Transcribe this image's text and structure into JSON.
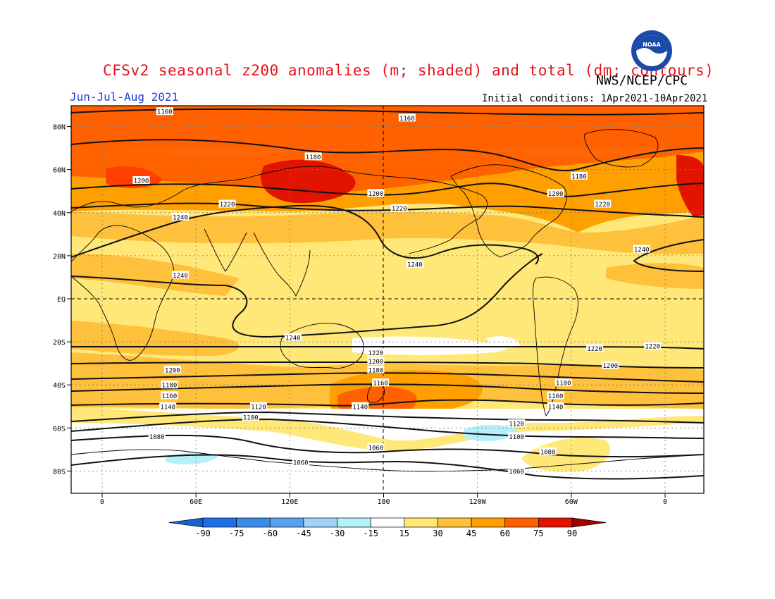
{
  "title": "CFSv2 seasonal z200 anomalies (m; shaded) and total (dm; contours)",
  "agency": "NWS/NCEP/CPC",
  "period": "Jun-Jul-Aug 2021",
  "initial_conditions": "Initial conditions: 1Apr2021-10Apr2021",
  "logo_text": "NOAA",
  "lat_labels": [
    "80N",
    "60N",
    "40N",
    "20N",
    "EQ",
    "20S",
    "40S",
    "60S",
    "80S"
  ],
  "lon_labels": [
    "0",
    "60E",
    "120E",
    "180",
    "120W",
    "60W",
    "0"
  ],
  "colorbar": {
    "ticks": [
      "-90",
      "-75",
      "-60",
      "-45",
      "-30",
      "-15",
      "15",
      "30",
      "45",
      "60",
      "75",
      "90"
    ],
    "colors": [
      "#1464d2",
      "#1e6ee6",
      "#3c8ce6",
      "#5aa0f0",
      "#a0d2fa",
      "#b4f0fa",
      "#ffffff",
      "#ffe878",
      "#ffc03c",
      "#ffa000",
      "#ff6000",
      "#e11400",
      "#a50000"
    ]
  },
  "contour_labels": [
    {
      "text": "1160",
      "lon": 40,
      "lat": 87
    },
    {
      "text": "1160",
      "lon": 195,
      "lat": 84
    },
    {
      "text": "1180",
      "lon": 135,
      "lat": 66
    },
    {
      "text": "1180",
      "lon": 305,
      "lat": 57
    },
    {
      "text": "1200",
      "lon": 25,
      "lat": 55
    },
    {
      "text": "1200",
      "lon": 175,
      "lat": 49
    },
    {
      "text": "1200",
      "lon": 290,
      "lat": 49
    },
    {
      "text": "1220",
      "lon": 80,
      "lat": 44
    },
    {
      "text": "1220",
      "lon": 190,
      "lat": 42
    },
    {
      "text": "1220",
      "lon": 320,
      "lat": 44
    },
    {
      "text": "1240",
      "lon": 50,
      "lat": 38
    },
    {
      "text": "1240",
      "lon": 200,
      "lat": 16
    },
    {
      "text": "1240",
      "lon": 345,
      "lat": 23
    },
    {
      "text": "1240",
      "lon": 50,
      "lat": 11
    },
    {
      "text": "1240",
      "lon": 122,
      "lat": -18
    },
    {
      "text": "1220",
      "lon": -8,
      "lat": -22
    },
    {
      "text": "1220",
      "lon": 175,
      "lat": -25
    },
    {
      "text": "1220",
      "lon": 315,
      "lat": -23
    },
    {
      "text": "1200",
      "lon": 175,
      "lat": -29
    },
    {
      "text": "1200",
      "lon": 45,
      "lat": -33
    },
    {
      "text": "1200",
      "lon": 325,
      "lat": -31
    },
    {
      "text": "1180",
      "lon": 175,
      "lat": -33
    },
    {
      "text": "1180",
      "lon": 43,
      "lat": -40
    },
    {
      "text": "1180",
      "lon": 295,
      "lat": -39
    },
    {
      "text": "1160",
      "lon": 178,
      "lat": -39
    },
    {
      "text": "1160",
      "lon": 43,
      "lat": -45
    },
    {
      "text": "1160",
      "lon": 290,
      "lat": -45
    },
    {
      "text": "1140",
      "lon": 42,
      "lat": -50
    },
    {
      "text": "1140",
      "lon": 165,
      "lat": -50
    },
    {
      "text": "1140",
      "lon": 290,
      "lat": -50
    },
    {
      "text": "1120",
      "lon": 100,
      "lat": -50
    },
    {
      "text": "1120",
      "lon": 265,
      "lat": -58
    },
    {
      "text": "1100",
      "lon": 95,
      "lat": -55
    },
    {
      "text": "1100",
      "lon": 265,
      "lat": -64
    },
    {
      "text": "1080",
      "lon": 35,
      "lat": -64
    },
    {
      "text": "1080",
      "lon": 285,
      "lat": -71
    },
    {
      "text": "1060",
      "lon": 175,
      "lat": -69
    },
    {
      "text": "1060",
      "lon": 127,
      "lat": -76
    },
    {
      "text": "1060",
      "lon": 265,
      "lat": -80
    }
  ]
}
